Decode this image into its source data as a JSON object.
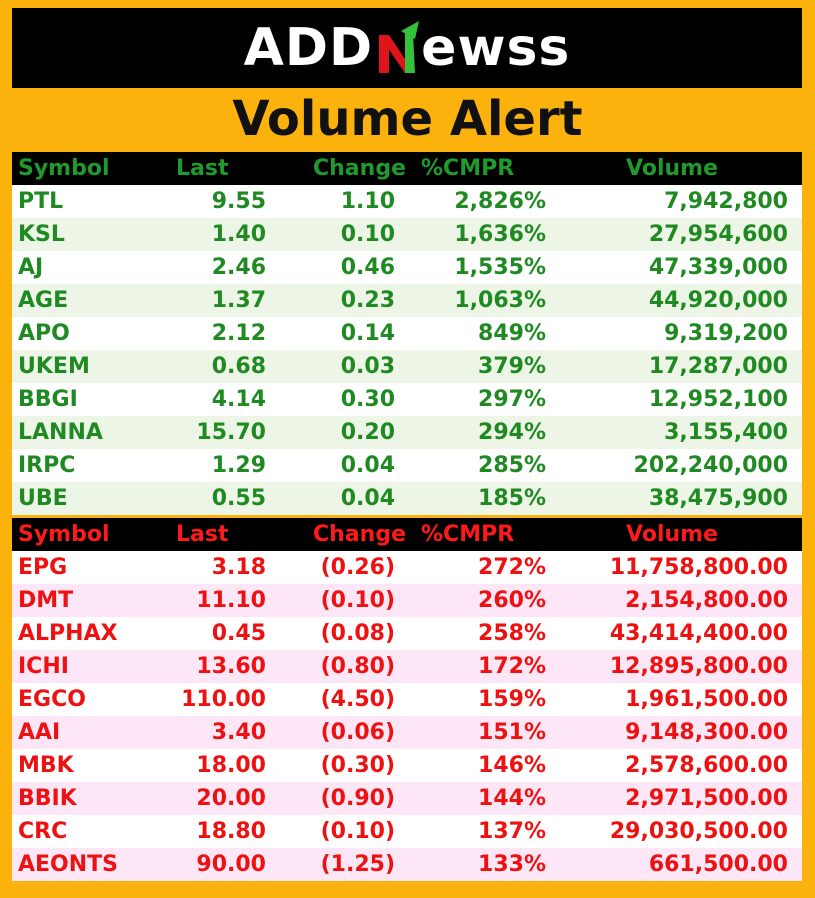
{
  "brand": {
    "logo_left": "ADD",
    "logo_right": "ewss",
    "colors": {
      "logo_text": "#ffffff",
      "n_green": "#35c23a",
      "n_red": "#e0141b"
    }
  },
  "title": "Volume Alert",
  "colors": {
    "background": "#fcb20c",
    "gainer_text": "#1f8a22",
    "loser_text": "#ee1111",
    "header_bg": "#000000"
  },
  "gainers": {
    "headers": [
      "Symbol",
      "Last",
      "Change",
      "%CMPR",
      "Volume"
    ],
    "rows": [
      [
        "PTL",
        "9.55",
        "1.10",
        "2,826%",
        "7,942,800"
      ],
      [
        "KSL",
        "1.40",
        "0.10",
        "1,636%",
        "27,954,600"
      ],
      [
        "AJ",
        "2.46",
        "0.46",
        "1,535%",
        "47,339,000"
      ],
      [
        "AGE",
        "1.37",
        "0.23",
        "1,063%",
        "44,920,000"
      ],
      [
        "APO",
        "2.12",
        "0.14",
        "849%",
        "9,319,200"
      ],
      [
        "UKEM",
        "0.68",
        "0.03",
        "379%",
        "17,287,000"
      ],
      [
        "BBGI",
        "4.14",
        "0.30",
        "297%",
        "12,952,100"
      ],
      [
        "LANNA",
        "15.70",
        "0.20",
        "294%",
        "3,155,400"
      ],
      [
        "IRPC",
        "1.29",
        "0.04",
        "285%",
        "202,240,000"
      ],
      [
        "UBE",
        "0.55",
        "0.04",
        "185%",
        "38,475,900"
      ]
    ]
  },
  "losers": {
    "headers": [
      "Symbol",
      "Last",
      "Change",
      "%CMPR",
      "Volume"
    ],
    "rows": [
      [
        "EPG",
        "3.18",
        "(0.26)",
        "272%",
        "11,758,800.00"
      ],
      [
        "DMT",
        "11.10",
        "(0.10)",
        "260%",
        "2,154,800.00"
      ],
      [
        "ALPHAX",
        "0.45",
        "(0.08)",
        "258%",
        "43,414,400.00"
      ],
      [
        "ICHI",
        "13.60",
        "(0.80)",
        "172%",
        "12,895,800.00"
      ],
      [
        "EGCO",
        "110.00",
        "(4.50)",
        "159%",
        "1,961,500.00"
      ],
      [
        "AAI",
        "3.40",
        "(0.06)",
        "151%",
        "9,148,300.00"
      ],
      [
        "MBK",
        "18.00",
        "(0.30)",
        "146%",
        "2,578,600.00"
      ],
      [
        "BBIK",
        "20.00",
        "(0.90)",
        "144%",
        "2,971,500.00"
      ],
      [
        "CRC",
        "18.80",
        "(0.10)",
        "137%",
        "29,030,500.00"
      ],
      [
        "AEONTS",
        "90.00",
        "(1.25)",
        "133%",
        "661,500.00"
      ]
    ]
  }
}
